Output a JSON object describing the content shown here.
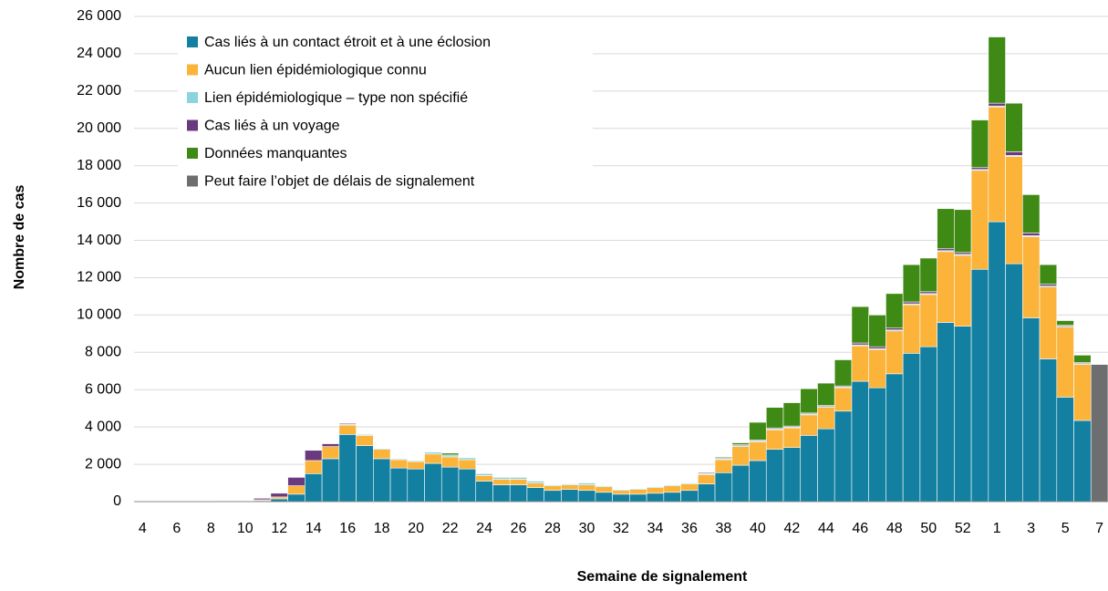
{
  "chart_data": {
    "type": "stacked-bar",
    "xlabel": "Semaine de signalement",
    "ylabel": "Nombre de cas",
    "categories": [
      "4",
      null,
      "6",
      null,
      "8",
      null,
      "10",
      null,
      "12",
      null,
      "14",
      null,
      "16",
      null,
      "18",
      null,
      "20",
      null,
      "22",
      null,
      "24",
      null,
      "26",
      null,
      "28",
      null,
      "30",
      null,
      "32",
      null,
      "34",
      null,
      "36",
      null,
      "38",
      null,
      "40",
      null,
      "42",
      null,
      "44",
      null,
      "46",
      null,
      "48",
      null,
      "50",
      null,
      "52",
      null,
      "1",
      null,
      "3",
      null,
      "5",
      null,
      "7"
    ],
    "series": [
      {
        "name": "Cas liés à un contact étroit et à une éclosion",
        "color": "#1380a1",
        "values": [
          0,
          0,
          0,
          0,
          0,
          10,
          20,
          50,
          150,
          400,
          1500,
          2300,
          3600,
          3000,
          2300,
          1800,
          1750,
          2050,
          1850,
          1750,
          1100,
          900,
          900,
          750,
          600,
          650,
          600,
          500,
          400,
          400,
          450,
          500,
          600,
          950,
          1550,
          1950,
          2200,
          2800,
          2900,
          3550,
          3900,
          4850,
          6450,
          6100,
          6850,
          7950,
          8300,
          9600,
          9400,
          12450,
          15000,
          12750,
          9850,
          7650,
          5600,
          4350,
          0
        ]
      },
      {
        "name": "Aucun lien épidémiologique connu",
        "color": "#fbb33a",
        "values": [
          0,
          0,
          0,
          0,
          0,
          0,
          10,
          50,
          100,
          450,
          700,
          650,
          500,
          550,
          500,
          450,
          400,
          500,
          550,
          500,
          300,
          300,
          300,
          250,
          250,
          250,
          300,
          300,
          200,
          250,
          300,
          350,
          350,
          500,
          700,
          1000,
          1000,
          1050,
          1050,
          1100,
          1150,
          1250,
          1900,
          2050,
          2300,
          2600,
          2800,
          3800,
          3800,
          5300,
          6150,
          5750,
          4350,
          3850,
          3750,
          3000,
          0
        ]
      },
      {
        "name": "Lien épidémiologique – type non spécifié",
        "color": "#8dd3df",
        "values": [
          0,
          0,
          0,
          0,
          0,
          0,
          0,
          0,
          0,
          0,
          0,
          0,
          50,
          50,
          50,
          50,
          50,
          100,
          100,
          100,
          100,
          100,
          100,
          100,
          50,
          50,
          100,
          50,
          50,
          50,
          50,
          50,
          50,
          50,
          50,
          50,
          50,
          50,
          50,
          50,
          50,
          50,
          50,
          50,
          50,
          50,
          50,
          50,
          50,
          50,
          50,
          50,
          50,
          50,
          50,
          50,
          0
        ]
      },
      {
        "name": "Cas liés à un voyage",
        "color": "#6a3a7e",
        "values": [
          0,
          0,
          10,
          10,
          20,
          30,
          30,
          80,
          200,
          450,
          550,
          150,
          50,
          0,
          0,
          0,
          0,
          0,
          0,
          0,
          0,
          0,
          0,
          0,
          0,
          0,
          0,
          0,
          0,
          0,
          0,
          0,
          0,
          50,
          50,
          50,
          50,
          50,
          50,
          50,
          50,
          50,
          100,
          100,
          100,
          100,
          100,
          100,
          100,
          100,
          150,
          200,
          150,
          100,
          50,
          50,
          0
        ]
      },
      {
        "name": "Données manquantes",
        "color": "#3f8a14",
        "values": [
          0,
          0,
          0,
          0,
          0,
          0,
          0,
          0,
          0,
          0,
          0,
          0,
          0,
          0,
          0,
          0,
          0,
          0,
          100,
          0,
          0,
          0,
          0,
          0,
          0,
          0,
          0,
          0,
          0,
          0,
          0,
          0,
          0,
          0,
          50,
          100,
          950,
          1100,
          1250,
          1300,
          1200,
          1400,
          1950,
          1700,
          1850,
          2000,
          1800,
          2150,
          2300,
          2550,
          3550,
          2600,
          2050,
          1050,
          250,
          400,
          0
        ]
      },
      {
        "name": "Peut faire l’objet de délais de signalement",
        "color": "#6d6e70",
        "values": [
          0,
          0,
          0,
          0,
          0,
          0,
          0,
          0,
          0,
          0,
          0,
          0,
          0,
          0,
          0,
          0,
          0,
          0,
          0,
          0,
          0,
          0,
          0,
          0,
          0,
          0,
          0,
          0,
          0,
          0,
          0,
          0,
          0,
          0,
          0,
          0,
          0,
          0,
          0,
          0,
          0,
          0,
          0,
          0,
          0,
          0,
          0,
          0,
          0,
          0,
          0,
          0,
          0,
          0,
          0,
          0,
          7350
        ]
      }
    ],
    "ylim": [
      0,
      26000
    ],
    "yticks": [
      0,
      {
        "value": 2000,
        "label": "2 000"
      },
      {
        "value": 4000,
        "label": "4 000"
      },
      {
        "value": 6000,
        "label": "6 000"
      },
      {
        "value": 8000,
        "label": "8 000"
      },
      {
        "value": 10000,
        "label": "10 000"
      },
      {
        "value": 12000,
        "label": "12 000"
      },
      {
        "value": 14000,
        "label": "14 000"
      },
      {
        "value": 16000,
        "label": "16 000"
      },
      {
        "value": 18000,
        "label": "18 000"
      },
      {
        "value": 20000,
        "label": "20 000"
      },
      {
        "value": 22000,
        "label": "22 000"
      },
      {
        "value": 24000,
        "label": "24 000"
      },
      {
        "value": 26000,
        "label": "26 000"
      }
    ],
    "grid": true,
    "legend": "upper left"
  }
}
